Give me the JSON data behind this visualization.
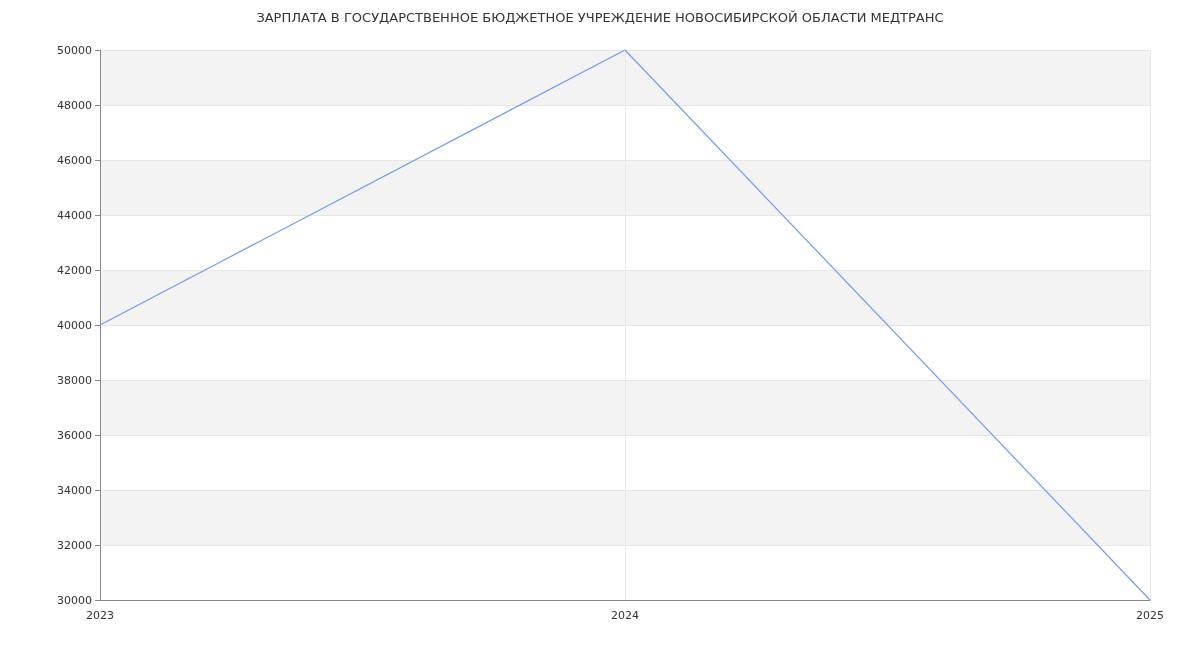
{
  "chart_data": {
    "type": "line",
    "title": "ЗАРПЛАТА В ГОСУДАРСТВЕННОЕ БЮДЖЕТНОЕ УЧРЕЖДЕНИЕ НОВОСИБИРСКОЙ ОБЛАСТИ МЕДТРАНС",
    "x": [
      2023,
      2024,
      2025
    ],
    "series": [
      {
        "color": "#6f9cf0",
        "values": [
          40000,
          50000,
          30000
        ]
      }
    ],
    "xlim": [
      2023,
      2025
    ],
    "xticks": [
      2023,
      2024,
      2025
    ],
    "ylim": [
      30000,
      50000
    ],
    "yticks": [
      30000,
      32000,
      34000,
      36000,
      38000,
      40000,
      42000,
      44000,
      46000,
      48000,
      50000
    ],
    "grid": true,
    "marker": "none",
    "line_style": "solid"
  }
}
